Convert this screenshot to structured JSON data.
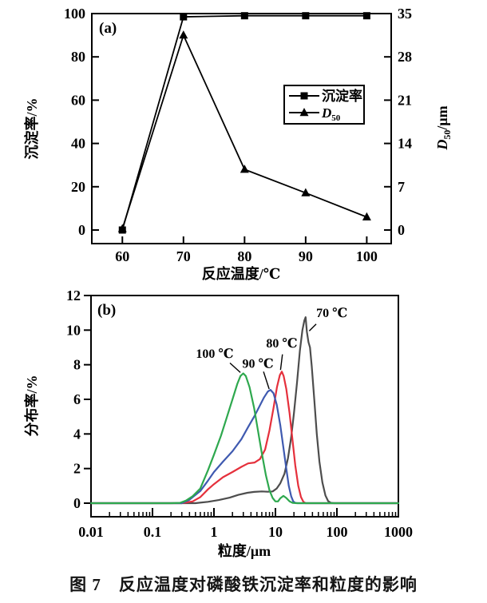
{
  "page": {
    "caption": "图 7　反应温度对磷酸铁沉淀率和粒度的影响",
    "background": "#ffffff",
    "axis_color": "#000000"
  },
  "chart_data": [
    {
      "id": "a",
      "type": "line",
      "panel_label": "(a)",
      "xlabel": "反应温度/℃",
      "ylabel_left": "沉淀率/%",
      "ylabel_right": {
        "main": "D",
        "sub": "50",
        "rest": "/μm"
      },
      "x_ticks": [
        60,
        70,
        80,
        90,
        100
      ],
      "x_range": [
        55,
        104
      ],
      "y_left": {
        "ticks": [
          0,
          20,
          40,
          60,
          80,
          100
        ],
        "min": 0,
        "max": 100
      },
      "y_right": {
        "ticks": [
          0,
          7,
          14,
          21,
          28,
          35
        ],
        "min": 0,
        "max": 35
      },
      "legend": [
        {
          "label": "沉淀率",
          "marker": "square"
        },
        {
          "label": "D",
          "sub": "50",
          "marker": "triangle"
        }
      ],
      "series": [
        {
          "name": "沉淀率",
          "marker": "square",
          "axis": "left",
          "color": "#000000",
          "x": [
            60,
            70,
            80,
            90,
            100
          ],
          "y": [
            0,
            98.5,
            99,
            99,
            99
          ]
        },
        {
          "name": "D50",
          "marker": "triangle",
          "axis": "right",
          "color": "#000000",
          "x": [
            60,
            70,
            80,
            90,
            100
          ],
          "y": [
            0.2,
            31.5,
            9.8,
            6.0,
            2.1
          ]
        }
      ]
    },
    {
      "id": "b",
      "type": "line",
      "panel_label": "(b)",
      "xlabel": "粒度/μm",
      "ylabel": "分布率/%",
      "x_scale": "log",
      "x_ticks": [
        "0.01",
        "0.1",
        "1",
        "10",
        "100",
        "1000"
      ],
      "y_ticks": [
        0,
        2,
        4,
        6,
        8,
        10,
        12
      ],
      "y_range": [
        0,
        12
      ],
      "series": [
        {
          "name": "70 ℃",
          "color": "#4d4d4d",
          "points": [
            [
              0.01,
              0
            ],
            [
              0.5,
              0
            ],
            [
              0.8,
              0.08
            ],
            [
              1.2,
              0.18
            ],
            [
              1.8,
              0.32
            ],
            [
              2.5,
              0.48
            ],
            [
              3.5,
              0.6
            ],
            [
              4.5,
              0.65
            ],
            [
              6,
              0.68
            ],
            [
              7.5,
              0.66
            ],
            [
              9,
              0.68
            ],
            [
              10.5,
              0.85
            ],
            [
              12,
              1.15
            ],
            [
              14,
              1.7
            ],
            [
              16,
              2.6
            ],
            [
              18,
              3.8
            ],
            [
              20,
              5.2
            ],
            [
              22.5,
              7.0
            ],
            [
              25,
              8.8
            ],
            [
              27.5,
              10.0
            ],
            [
              29.5,
              10.55
            ],
            [
              31,
              10.75
            ],
            [
              32.5,
              9.9
            ],
            [
              34.5,
              9.3
            ],
            [
              36.5,
              9.0
            ],
            [
              39,
              7.9
            ],
            [
              43,
              5.9
            ],
            [
              47,
              4.0
            ],
            [
              52,
              2.4
            ],
            [
              58,
              1.2
            ],
            [
              65,
              0.45
            ],
            [
              72,
              0.12
            ],
            [
              80,
              0.02
            ],
            [
              90,
              0
            ],
            [
              1000,
              0
            ]
          ]
        },
        {
          "name": "80 ℃",
          "color": "#e5303c",
          "points": [
            [
              0.01,
              0
            ],
            [
              0.3,
              0
            ],
            [
              0.45,
              0.1
            ],
            [
              0.6,
              0.35
            ],
            [
              0.8,
              0.8
            ],
            [
              1.0,
              1.1
            ],
            [
              1.4,
              1.5
            ],
            [
              2.0,
              1.8
            ],
            [
              2.8,
              2.1
            ],
            [
              3.6,
              2.3
            ],
            [
              4.6,
              2.35
            ],
            [
              5.6,
              2.55
            ],
            [
              6.8,
              3.1
            ],
            [
              8,
              4.2
            ],
            [
              9.3,
              5.5
            ],
            [
              10.6,
              6.7
            ],
            [
              11.8,
              7.4
            ],
            [
              12.7,
              7.6
            ],
            [
              13.6,
              7.35
            ],
            [
              15,
              6.6
            ],
            [
              17,
              5.2
            ],
            [
              19,
              3.6
            ],
            [
              21,
              2.2
            ],
            [
              23.5,
              1.0
            ],
            [
              26,
              0.35
            ],
            [
              28.5,
              0.08
            ],
            [
              31,
              0
            ],
            [
              1000,
              0
            ]
          ]
        },
        {
          "name": "90 ℃",
          "color": "#3f5ab0",
          "points": [
            [
              0.01,
              0
            ],
            [
              0.3,
              0
            ],
            [
              0.4,
              0.2
            ],
            [
              0.6,
              0.7
            ],
            [
              0.8,
              1.3
            ],
            [
              1.0,
              1.8
            ],
            [
              1.4,
              2.4
            ],
            [
              2.0,
              3.0
            ],
            [
              2.8,
              3.7
            ],
            [
              3.6,
              4.4
            ],
            [
              4.5,
              5.0
            ],
            [
              5.5,
              5.6
            ],
            [
              6.5,
              6.1
            ],
            [
              7.5,
              6.45
            ],
            [
              8.3,
              6.55
            ],
            [
              9.3,
              6.35
            ],
            [
              10.5,
              5.7
            ],
            [
              12,
              4.5
            ],
            [
              13.5,
              3.2
            ],
            [
              15,
              2.0
            ],
            [
              16.5,
              1.0
            ],
            [
              18,
              0.4
            ],
            [
              19.5,
              0.1
            ],
            [
              21,
              0.02
            ],
            [
              23,
              0
            ],
            [
              1000,
              0
            ]
          ]
        },
        {
          "name": "100 ℃",
          "color": "#2ea84e",
          "points": [
            [
              0.01,
              0
            ],
            [
              0.2,
              0
            ],
            [
              0.28,
              0.02
            ],
            [
              0.35,
              0.15
            ],
            [
              0.45,
              0.4
            ],
            [
              0.6,
              0.85
            ],
            [
              0.8,
              1.9
            ],
            [
              1.0,
              2.8
            ],
            [
              1.3,
              3.9
            ],
            [
              1.6,
              4.9
            ],
            [
              2.0,
              6.0
            ],
            [
              2.4,
              6.9
            ],
            [
              2.7,
              7.35
            ],
            [
              3.0,
              7.5
            ],
            [
              3.3,
              7.35
            ],
            [
              3.8,
              6.7
            ],
            [
              4.5,
              5.5
            ],
            [
              5.2,
              4.2
            ],
            [
              6.0,
              2.9
            ],
            [
              7,
              1.6
            ],
            [
              8,
              0.75
            ],
            [
              9,
              0.3
            ],
            [
              10,
              0.1
            ],
            [
              11,
              0.1
            ],
            [
              12,
              0.28
            ],
            [
              13.5,
              0.42
            ],
            [
              15,
              0.3
            ],
            [
              17,
              0.1
            ],
            [
              19,
              0.02
            ],
            [
              22,
              0
            ],
            [
              1000,
              0
            ]
          ]
        }
      ],
      "annotations": [
        {
          "text": "100 ℃",
          "label_at": [
            1.03,
            8.4
          ],
          "arrow": [
            [
              1.82,
              8.1
            ],
            [
              2.69,
              7.55
            ]
          ]
        },
        {
          "text": "90 ℃",
          "label_at": [
            5.2,
            7.83
          ],
          "arrow": [
            [
              6.4,
              7.6
            ],
            [
              7.9,
              6.6
            ]
          ]
        },
        {
          "text": "80 ℃",
          "label_at": [
            12.7,
            9.0
          ],
          "arrow": [
            [
              13.0,
              8.6
            ],
            [
              12.1,
              7.7
            ]
          ]
        },
        {
          "text": "70 ℃",
          "label_at": [
            83,
            10.75
          ],
          "arrow": [
            [
              46,
              10.35
            ],
            [
              35.5,
              9.95
            ]
          ]
        }
      ]
    }
  ]
}
